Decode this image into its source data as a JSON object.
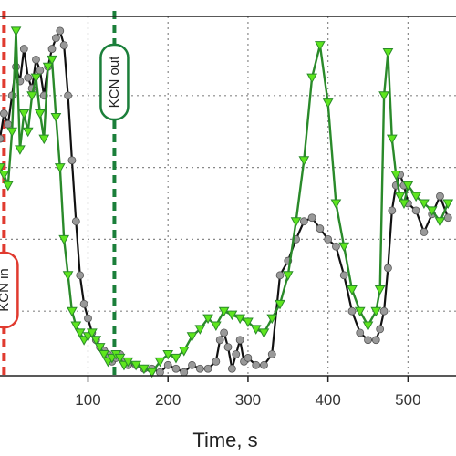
{
  "chart_data": {
    "type": "line",
    "xlabel": "Time, s",
    "x_ticks": [
      100,
      200,
      300,
      400,
      500
    ],
    "xlim": [
      -10,
      560
    ],
    "ylim": [
      0,
      100
    ],
    "grid": true,
    "annotations": [
      {
        "text": "KCN out",
        "x": 133,
        "color": "#1b7f3a",
        "style": "dashed-vertical-line"
      },
      {
        "text": "KCN in",
        "x": -5,
        "color": "#e03a2f",
        "style": "dashed-vertical-line"
      }
    ],
    "colors": {
      "series_black": "#111111",
      "series_green": "#2a8a2a",
      "green_marker_fill": "#5ee61e",
      "gray_marker_fill": "#999999",
      "kcn_out": "#1b7f3a",
      "kcn_in": "#e03a2f"
    },
    "series": [
      {
        "marker": "circle",
        "x": [
          -10,
          -5,
          0,
          5,
          10,
          15,
          20,
          25,
          30,
          35,
          40,
          45,
          50,
          55,
          60,
          65,
          70,
          75,
          80,
          85,
          90,
          95,
          100,
          105,
          110,
          115,
          120,
          125,
          130,
          135,
          140,
          145,
          150,
          160,
          170,
          180,
          190,
          200,
          210,
          220,
          230,
          240,
          250,
          260,
          265,
          270,
          275,
          280,
          285,
          290,
          295,
          300,
          310,
          320,
          330,
          340,
          350,
          360,
          370,
          380,
          390,
          400,
          410,
          420,
          430,
          440,
          450,
          460,
          465,
          470,
          475,
          480,
          485,
          490,
          495,
          500,
          510,
          520,
          530,
          540,
          550
        ],
        "y": [
          68,
          75,
          72,
          80,
          88,
          84,
          93,
          85,
          82,
          90,
          87,
          80,
          88,
          93,
          96,
          98,
          94,
          80,
          62,
          45,
          30,
          22,
          18,
          14,
          12,
          10,
          9,
          8,
          6,
          7,
          8,
          6,
          5,
          5,
          4,
          4,
          3,
          5,
          4,
          3,
          5,
          4,
          4,
          6,
          12,
          14,
          10,
          4,
          8,
          12,
          6,
          7,
          5,
          5,
          8,
          30,
          34,
          40,
          45,
          46,
          43,
          40,
          38,
          30,
          20,
          14,
          12,
          12,
          15,
          20,
          32,
          48,
          55,
          58,
          55,
          50,
          48,
          42,
          47,
          52,
          46
        ]
      },
      {
        "marker": "triangle-down",
        "x": [
          -10,
          -5,
          0,
          5,
          10,
          15,
          20,
          25,
          30,
          35,
          40,
          45,
          50,
          55,
          60,
          65,
          70,
          75,
          80,
          85,
          90,
          95,
          100,
          105,
          110,
          115,
          120,
          125,
          130,
          135,
          140,
          145,
          150,
          160,
          170,
          180,
          190,
          200,
          210,
          220,
          230,
          240,
          250,
          260,
          270,
          280,
          290,
          300,
          310,
          320,
          330,
          340,
          350,
          360,
          370,
          380,
          390,
          400,
          410,
          420,
          430,
          440,
          450,
          460,
          465,
          470,
          475,
          480,
          485,
          490,
          495,
          500,
          510,
          520,
          530,
          540,
          550
        ],
        "y": [
          60,
          58,
          55,
          70,
          98,
          65,
          75,
          70,
          80,
          85,
          75,
          68,
          88,
          90,
          74,
          60,
          40,
          30,
          20,
          16,
          14,
          12,
          13,
          14,
          12,
          10,
          8,
          6,
          7,
          8,
          7,
          5,
          6,
          5,
          4,
          3,
          6,
          8,
          7,
          9,
          13,
          15,
          18,
          16,
          20,
          19,
          18,
          17,
          15,
          14,
          18,
          22,
          30,
          45,
          62,
          85,
          94,
          78,
          50,
          38,
          26,
          20,
          16,
          20,
          26,
          80,
          92,
          68,
          58,
          52,
          50,
          55,
          52,
          50,
          48,
          45,
          50
        ]
      }
    ]
  }
}
